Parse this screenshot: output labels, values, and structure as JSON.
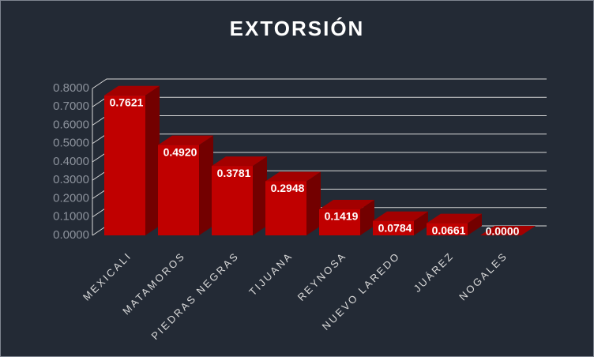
{
  "chart_data": {
    "type": "bar3d",
    "title": "EXTORSIÓN",
    "categories": [
      "MEXICALI",
      "MATAMOROS",
      "PIEDRAS NEGRAS",
      "TIJUANA",
      "REYNOSA",
      "NUEVO LAREDO",
      "JUÁREZ",
      "NOGALES"
    ],
    "values": [
      0.7621,
      0.492,
      0.3781,
      0.2948,
      0.1419,
      0.0784,
      0.0661,
      0
    ],
    "value_labels": [
      "0.7621",
      "0.4920",
      "0.3781",
      "0.2948",
      "0.1419",
      "0.0784",
      "0.0661",
      "0.0000"
    ],
    "color": "#c00000",
    "ylim": [
      0,
      0.8
    ],
    "yticks": [
      {
        "value": 0,
        "label": "0.0000"
      },
      {
        "value": 0.1,
        "label": "0.1000"
      },
      {
        "value": 0.2,
        "label": "0.2000"
      },
      {
        "value": 0.3,
        "label": "0.3000"
      },
      {
        "value": 0.4,
        "label": "0.4000"
      },
      {
        "value": 0.5,
        "label": "0.5000"
      },
      {
        "value": 0.6,
        "label": "0.6000"
      },
      {
        "value": 0.7,
        "label": "0.7000"
      },
      {
        "value": 0.8,
        "label": "0.8000"
      }
    ],
    "grid": true
  }
}
